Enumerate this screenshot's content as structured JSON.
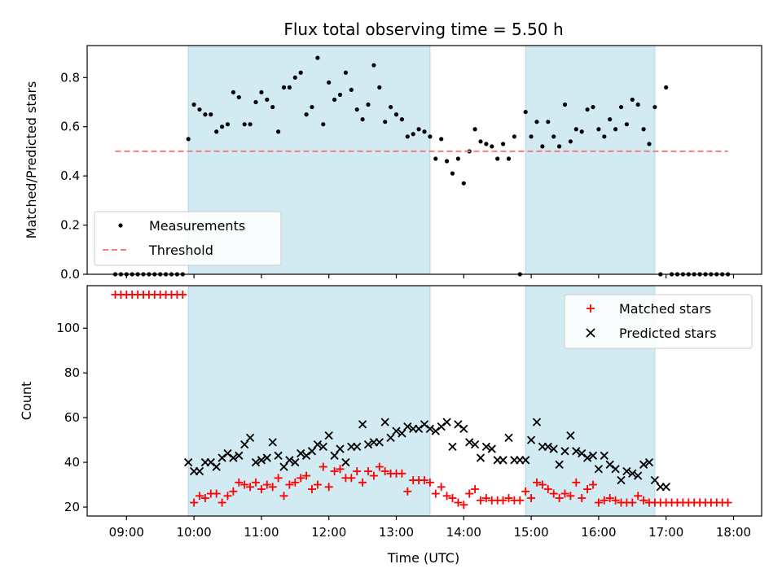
{
  "figure": {
    "title": "Flux total observing time = 5.50 h",
    "xlabel": "Time (UTC)",
    "x_ticks": [
      "09:00",
      "10:00",
      "11:00",
      "12:00",
      "13:00",
      "14:00",
      "15:00",
      "16:00",
      "17:00",
      "18:00"
    ],
    "shade_color": "#add8e6",
    "shaded_intervals": [
      [
        "09:55",
        "13:30"
      ],
      [
        "14:55",
        "16:50"
      ]
    ]
  },
  "chart_data": [
    {
      "type": "scatter",
      "ylabel": "Matched/Predicted stars",
      "xlim": [
        "08:25",
        "18:25"
      ],
      "ylim": [
        0,
        0.93
      ],
      "y_ticks": [
        "0.0",
        "0.2",
        "0.4",
        "0.6",
        "0.8"
      ],
      "legend_position": "lower-left",
      "series": [
        {
          "name": "Measurements",
          "color": "#000000",
          "marker": "dot",
          "x": [
            "08:50",
            "08:55",
            "09:00",
            "09:05",
            "09:10",
            "09:15",
            "09:20",
            "09:25",
            "09:30",
            "09:35",
            "09:40",
            "09:45",
            "09:50",
            "09:55",
            "10:00",
            "10:05",
            "10:10",
            "10:15",
            "10:20",
            "10:25",
            "10:30",
            "10:35",
            "10:40",
            "10:45",
            "10:50",
            "10:55",
            "11:00",
            "11:05",
            "11:10",
            "11:15",
            "11:20",
            "11:25",
            "11:30",
            "11:35",
            "11:40",
            "11:45",
            "11:50",
            "11:55",
            "12:00",
            "12:05",
            "12:10",
            "12:15",
            "12:20",
            "12:25",
            "12:30",
            "12:35",
            "12:40",
            "12:45",
            "12:50",
            "12:55",
            "13:00",
            "13:05",
            "13:10",
            "13:15",
            "13:20",
            "13:25",
            "13:30",
            "13:35",
            "13:40",
            "13:45",
            "13:50",
            "13:55",
            "14:00",
            "14:05",
            "14:10",
            "14:15",
            "14:20",
            "14:25",
            "14:30",
            "14:35",
            "14:40",
            "14:45",
            "14:50",
            "14:55",
            "15:00",
            "15:05",
            "15:10",
            "15:15",
            "15:20",
            "15:25",
            "15:30",
            "15:35",
            "15:40",
            "15:45",
            "15:50",
            "15:55",
            "16:00",
            "16:05",
            "16:10",
            "16:15",
            "16:20",
            "16:25",
            "16:30",
            "16:35",
            "16:40",
            "16:45",
            "16:50",
            "16:55",
            "17:00",
            "17:05",
            "17:10",
            "17:15",
            "17:20",
            "17:25",
            "17:30",
            "17:35",
            "17:40",
            "17:45",
            "17:50",
            "17:55"
          ],
          "y": [
            0,
            0,
            0,
            0,
            0,
            0,
            0,
            0,
            0,
            0,
            0,
            0,
            0,
            0.55,
            0.69,
            0.67,
            0.65,
            0.65,
            0.58,
            0.6,
            0.61,
            0.74,
            0.72,
            0.61,
            0.61,
            0.7,
            0.74,
            0.71,
            0.68,
            0.58,
            0.76,
            0.76,
            0.8,
            0.82,
            0.65,
            0.68,
            0.88,
            0.61,
            0.78,
            0.71,
            0.73,
            0.82,
            0.75,
            0.67,
            0.63,
            0.69,
            0.85,
            0.76,
            0.62,
            0.68,
            0.65,
            0.63,
            0.56,
            0.57,
            0.59,
            0.58,
            0.56,
            0.47,
            0.55,
            0.46,
            0.41,
            0.47,
            0.37,
            0.5,
            0.59,
            0.54,
            0.53,
            0.52,
            0.47,
            0.53,
            0.47,
            0.56,
            0,
            0.66,
            0.56,
            0.62,
            0.52,
            0.62,
            0.56,
            0.52,
            0.69,
            0.54,
            0.59,
            0.58,
            0.67,
            0.68,
            0.59,
            0.56,
            0.63,
            0.59,
            0.68,
            0.61,
            0.71,
            0.69,
            0.59,
            0.53,
            0.68,
            0,
            0.76,
            0,
            0,
            0,
            0,
            0,
            0,
            0,
            0,
            0,
            0,
            0
          ],
          "note_x_shift_last_points": "none"
        },
        {
          "name": "Threshold",
          "color": "#f08080",
          "line_style": "dashed",
          "x": [
            "08:50",
            "17:55"
          ],
          "y": [
            0.5,
            0.5
          ]
        }
      ]
    },
    {
      "type": "scatter",
      "ylabel": "Count",
      "xlim": [
        "08:25",
        "18:25"
      ],
      "ylim": [
        16,
        119
      ],
      "y_ticks": [
        "20",
        "40",
        "60",
        "80",
        "100"
      ],
      "legend_position": "top-right",
      "series": [
        {
          "name": "Matched stars",
          "color": "#ff0000",
          "marker": "plus",
          "x": [
            "08:50",
            "08:55",
            "09:00",
            "09:05",
            "09:10",
            "09:15",
            "09:20",
            "09:25",
            "09:30",
            "09:35",
            "09:40",
            "09:45",
            "09:50",
            "10:00",
            "10:05",
            "10:10",
            "10:15",
            "10:20",
            "10:25",
            "10:30",
            "10:35",
            "10:40",
            "10:45",
            "10:50",
            "10:55",
            "11:00",
            "11:05",
            "11:10",
            "11:15",
            "11:20",
            "11:25",
            "11:30",
            "11:35",
            "11:40",
            "11:45",
            "11:50",
            "11:55",
            "12:00",
            "12:05",
            "12:10",
            "12:15",
            "12:20",
            "12:25",
            "12:30",
            "12:35",
            "12:40",
            "12:45",
            "12:50",
            "12:55",
            "13:00",
            "13:05",
            "13:10",
            "13:15",
            "13:20",
            "13:25",
            "13:30",
            "13:35",
            "13:40",
            "13:45",
            "13:50",
            "13:55",
            "14:00",
            "14:05",
            "14:10",
            "14:15",
            "14:20",
            "14:25",
            "14:30",
            "14:35",
            "14:40",
            "14:45",
            "14:50",
            "14:55",
            "15:00",
            "15:05",
            "15:10",
            "15:15",
            "15:20",
            "15:25",
            "15:30",
            "15:35",
            "15:40",
            "15:45",
            "15:50",
            "15:55",
            "16:00",
            "16:05",
            "16:10",
            "16:15",
            "16:20",
            "16:25",
            "16:30",
            "16:35",
            "16:40",
            "16:45",
            "16:50",
            "16:55",
            "17:00",
            "17:05",
            "17:10",
            "17:15",
            "17:20",
            "17:25",
            "17:30",
            "17:35",
            "17:40",
            "17:45",
            "17:50",
            "17:55"
          ],
          "y": [
            115,
            115,
            115,
            115,
            115,
            115,
            115,
            115,
            115,
            115,
            115,
            115,
            115,
            22,
            25,
            24,
            26,
            26,
            22,
            25,
            27,
            31,
            30,
            29,
            31,
            28,
            30,
            29,
            33,
            25,
            30,
            31,
            33,
            34,
            28,
            30,
            38,
            29,
            36,
            37,
            33,
            33,
            36,
            31,
            36,
            34,
            38,
            36,
            35,
            35,
            35,
            27,
            32,
            32,
            32,
            31,
            26,
            29,
            25,
            24,
            22,
            21,
            26,
            28,
            23,
            24,
            23,
            23,
            23,
            24,
            23,
            23,
            27,
            24,
            31,
            30,
            28,
            26,
            24,
            26,
            25,
            31,
            24,
            28,
            30,
            22,
            23,
            24,
            23,
            22,
            22,
            22,
            25,
            23,
            22,
            22,
            22,
            22,
            22,
            22,
            22,
            22,
            22,
            22,
            22,
            22,
            22,
            22,
            22
          ]
        },
        {
          "name": "Predicted stars",
          "color": "#000000",
          "marker": "x",
          "x": [
            "09:55",
            "10:00",
            "10:05",
            "10:10",
            "10:15",
            "10:20",
            "10:25",
            "10:30",
            "10:35",
            "10:40",
            "10:45",
            "10:50",
            "10:55",
            "11:00",
            "11:05",
            "11:10",
            "11:15",
            "11:20",
            "11:25",
            "11:30",
            "11:35",
            "11:40",
            "11:45",
            "11:50",
            "11:55",
            "12:00",
            "12:05",
            "12:10",
            "12:15",
            "12:20",
            "12:25",
            "12:30",
            "12:35",
            "12:40",
            "12:45",
            "12:50",
            "12:55",
            "13:00",
            "13:05",
            "13:10",
            "13:15",
            "13:20",
            "13:25",
            "13:30",
            "13:35",
            "13:40",
            "13:45",
            "13:50",
            "13:55",
            "14:00",
            "14:05",
            "14:10",
            "14:15",
            "14:20",
            "14:25",
            "14:30",
            "14:35",
            "14:40",
            "14:45",
            "14:50",
            "14:55",
            "15:00",
            "15:05",
            "15:10",
            "15:15",
            "15:20",
            "15:25",
            "15:30",
            "15:35",
            "15:40",
            "15:45",
            "15:50",
            "15:55",
            "16:00",
            "16:05",
            "16:10",
            "16:15",
            "16:20",
            "16:25",
            "16:30",
            "16:35",
            "16:40",
            "16:45",
            "16:50",
            "16:55",
            "17:00"
          ],
          "y": [
            40,
            36,
            36,
            40,
            40,
            38,
            42,
            44,
            42,
            43,
            48,
            51,
            40,
            41,
            42,
            49,
            43,
            38,
            41,
            40,
            44,
            43,
            45,
            48,
            47,
            52,
            43,
            46,
            40,
            47,
            47,
            57,
            48,
            49,
            49,
            58,
            51,
            54,
            53,
            56,
            55,
            55,
            57,
            55,
            54,
            56,
            58,
            47,
            57,
            55,
            49,
            48,
            42,
            47,
            46,
            41,
            41,
            51,
            41,
            41,
            41,
            50,
            58,
            47,
            47,
            46,
            39,
            45,
            52,
            45,
            44,
            42,
            43,
            37,
            43,
            39,
            37,
            32,
            36,
            35,
            34,
            39,
            40,
            32,
            29,
            29
          ]
        }
      ]
    }
  ]
}
